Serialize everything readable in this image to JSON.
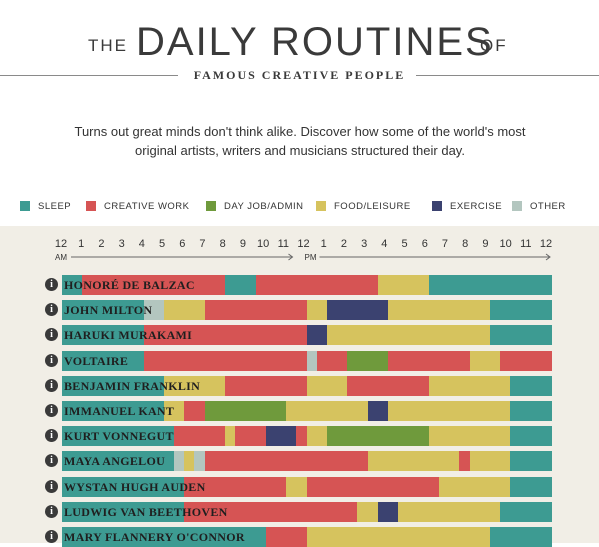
{
  "header": {
    "title_prefix": "THE",
    "title_main": "DAILY ROUTINES",
    "title_suffix": "OF",
    "subtitle": "FAMOUS CREATIVE PEOPLE",
    "intro": "Turns out great minds don't think alike. Discover how some of the world's most original artists, writers and musicians structured their day."
  },
  "chart_data": {
    "type": "bar",
    "orientation": "horizontal-stacked-timeline",
    "x_axis": {
      "ticks": [
        "12",
        "1",
        "2",
        "3",
        "4",
        "5",
        "6",
        "7",
        "8",
        "9",
        "10",
        "11",
        "12",
        "1",
        "2",
        "3",
        "4",
        "5",
        "6",
        "7",
        "8",
        "9",
        "10",
        "11",
        "12"
      ],
      "am_label": "AM",
      "pm_label": "PM",
      "range_hours": [
        0,
        24
      ]
    },
    "legend": [
      {
        "key": "sleep",
        "label": "SLEEP",
        "color": "#3d9b92"
      },
      {
        "key": "creative",
        "label": "CREATIVE WORK",
        "color": "#d65454"
      },
      {
        "key": "dayjob",
        "label": "DAY JOB/ADMIN",
        "color": "#6f9a3c"
      },
      {
        "key": "food",
        "label": "FOOD/LEISURE",
        "color": "#d6c35e"
      },
      {
        "key": "exercise",
        "label": "EXERCISE",
        "color": "#3b4270"
      },
      {
        "key": "other",
        "label": "OTHER",
        "color": "#b3c6bf"
      }
    ],
    "series": [
      {
        "name": "HONORÉ DE BALZAC",
        "segments": [
          [
            0,
            1,
            "sleep"
          ],
          [
            1,
            8,
            "creative"
          ],
          [
            8,
            9.5,
            "sleep"
          ],
          [
            9.5,
            15.5,
            "creative"
          ],
          [
            15.5,
            18,
            "food"
          ],
          [
            18,
            24,
            "sleep"
          ]
        ]
      },
      {
        "name": "JOHN MILTON",
        "segments": [
          [
            0,
            4,
            "sleep"
          ],
          [
            4,
            5,
            "other"
          ],
          [
            5,
            7,
            "food"
          ],
          [
            7,
            12,
            "creative"
          ],
          [
            12,
            13,
            "food"
          ],
          [
            13,
            16,
            "exercise"
          ],
          [
            16,
            21,
            "food"
          ],
          [
            21,
            24,
            "sleep"
          ]
        ]
      },
      {
        "name": "HARUKI MURAKAMI",
        "segments": [
          [
            0,
            4,
            "sleep"
          ],
          [
            4,
            12,
            "creative"
          ],
          [
            12,
            13,
            "exercise"
          ],
          [
            13,
            21,
            "food"
          ],
          [
            21,
            24,
            "sleep"
          ]
        ]
      },
      {
        "name": "VOLTAIRE",
        "segments": [
          [
            0,
            4,
            "sleep"
          ],
          [
            4,
            12,
            "creative"
          ],
          [
            12,
            12.5,
            "other"
          ],
          [
            12.5,
            14,
            "creative"
          ],
          [
            14,
            16,
            "dayjob"
          ],
          [
            16,
            20,
            "creative"
          ],
          [
            20,
            21.5,
            "food"
          ],
          [
            21.5,
            24,
            "creative"
          ]
        ]
      },
      {
        "name": "BENJAMIN FRANKLIN",
        "segments": [
          [
            0,
            5,
            "sleep"
          ],
          [
            5,
            8,
            "food"
          ],
          [
            8,
            12,
            "creative"
          ],
          [
            12,
            14,
            "food"
          ],
          [
            14,
            18,
            "creative"
          ],
          [
            18,
            22,
            "food"
          ],
          [
            22,
            24,
            "sleep"
          ]
        ]
      },
      {
        "name": "IMMANUEL KANT",
        "segments": [
          [
            0,
            5,
            "sleep"
          ],
          [
            5,
            6,
            "food"
          ],
          [
            6,
            7,
            "creative"
          ],
          [
            7,
            11,
            "dayjob"
          ],
          [
            11,
            15,
            "food"
          ],
          [
            15,
            16,
            "exercise"
          ],
          [
            16,
            22,
            "food"
          ],
          [
            22,
            24,
            "sleep"
          ]
        ]
      },
      {
        "name": "KURT VONNEGUT",
        "segments": [
          [
            0,
            5.5,
            "sleep"
          ],
          [
            5.5,
            8,
            "creative"
          ],
          [
            8,
            8.5,
            "food"
          ],
          [
            8.5,
            10,
            "creative"
          ],
          [
            10,
            11.5,
            "exercise"
          ],
          [
            11.5,
            12,
            "creative"
          ],
          [
            12,
            13,
            "food"
          ],
          [
            13,
            18,
            "dayjob"
          ],
          [
            18,
            22,
            "food"
          ],
          [
            22,
            24,
            "sleep"
          ]
        ]
      },
      {
        "name": "MAYA ANGELOU",
        "segments": [
          [
            0,
            5.5,
            "sleep"
          ],
          [
            5.5,
            6,
            "other"
          ],
          [
            6,
            6.5,
            "food"
          ],
          [
            6.5,
            7,
            "other"
          ],
          [
            7,
            15,
            "creative"
          ],
          [
            15,
            19.5,
            "food"
          ],
          [
            19.5,
            20,
            "creative"
          ],
          [
            20,
            22,
            "food"
          ],
          [
            22,
            24,
            "sleep"
          ]
        ]
      },
      {
        "name": "WYSTAN HUGH AUDEN",
        "segments": [
          [
            0,
            6,
            "sleep"
          ],
          [
            6,
            11,
            "creative"
          ],
          [
            11,
            12,
            "food"
          ],
          [
            12,
            18.5,
            "creative"
          ],
          [
            18.5,
            22,
            "food"
          ],
          [
            22,
            24,
            "sleep"
          ]
        ]
      },
      {
        "name": "LUDWIG VAN BEETHOVEN",
        "segments": [
          [
            0,
            6,
            "sleep"
          ],
          [
            6,
            14.5,
            "creative"
          ],
          [
            14.5,
            15.5,
            "food"
          ],
          [
            15.5,
            16.5,
            "exercise"
          ],
          [
            16.5,
            21.5,
            "food"
          ],
          [
            21.5,
            24,
            "sleep"
          ]
        ]
      },
      {
        "name": "MARY FLANNERY O'CONNOR",
        "segments": [
          [
            0,
            10,
            "sleep"
          ],
          [
            10,
            12,
            "creative"
          ],
          [
            12,
            21,
            "food"
          ],
          [
            21,
            24,
            "sleep"
          ]
        ]
      }
    ]
  }
}
